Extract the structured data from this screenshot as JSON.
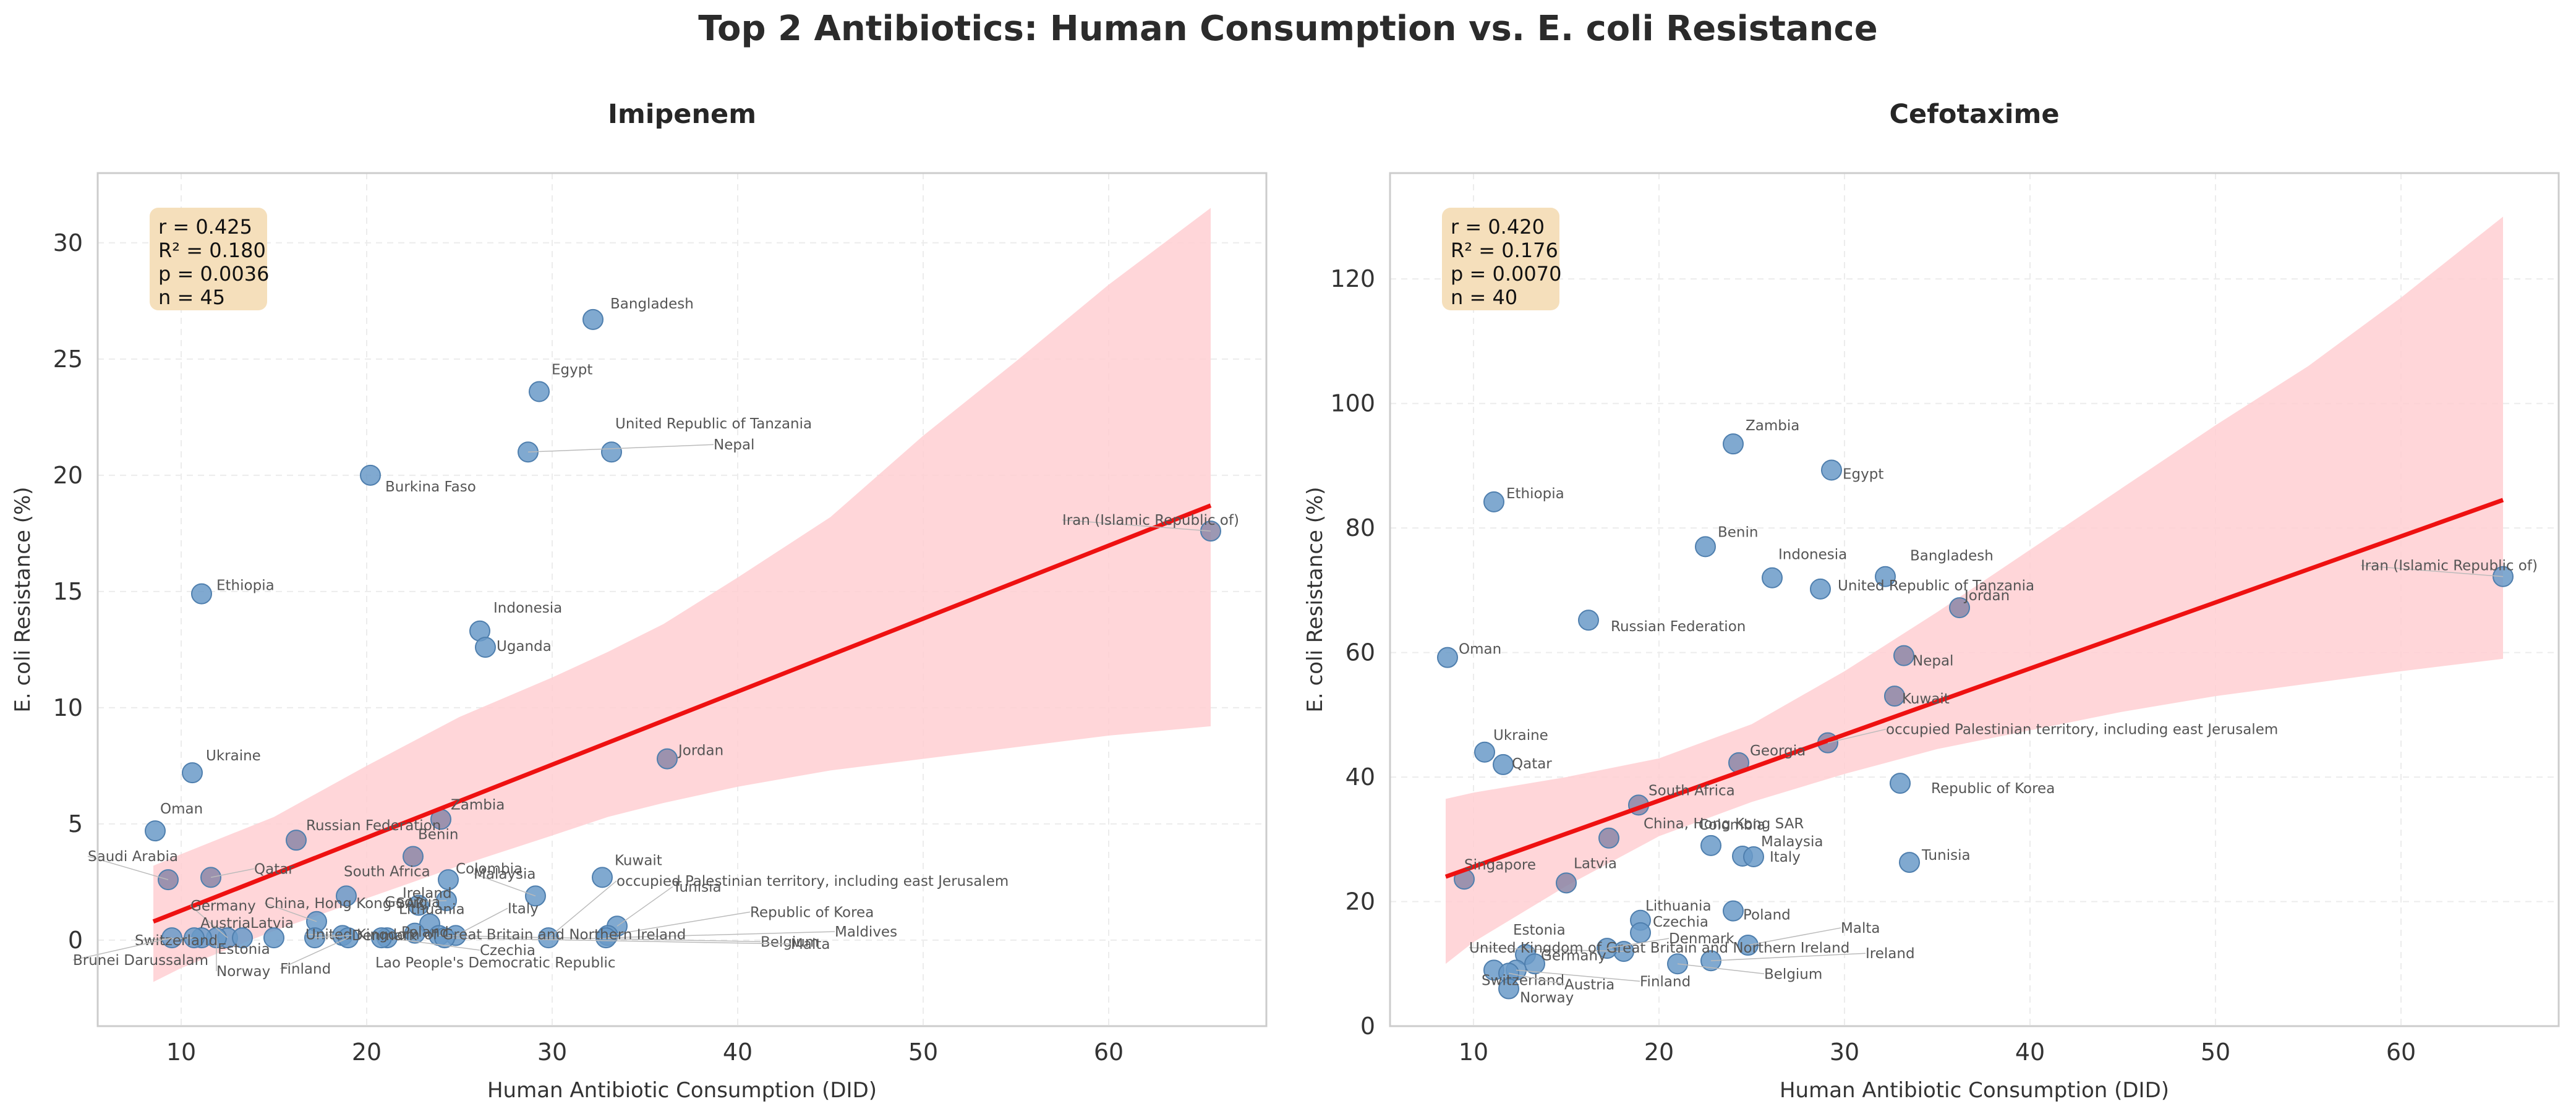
{
  "title": "Top 2 Antibiotics: Human Consumption vs. E. coli Resistance",
  "colors": {
    "point": "#6a9ac8",
    "point_edge": "#4f7fae",
    "overlap_point": "#8b86a6",
    "fit_line": "#ee1111",
    "ci_band": "#ffcfd2",
    "stats_box": "#f5dfbb",
    "grid": "#ececec",
    "axis": "#cccccc"
  },
  "chart_data": [
    {
      "type": "scatter",
      "title": "Imipenem",
      "xlabel": "Human Antibiotic Consumption (DID)",
      "ylabel": "E. coli Resistance (%)",
      "xlim": [
        5.5,
        68.5
      ],
      "ylim": [
        -3.7,
        33
      ],
      "xticks": [
        10,
        20,
        30,
        40,
        50,
        60
      ],
      "yticks": [
        0,
        5,
        10,
        15,
        20,
        25,
        30
      ],
      "grid": true,
      "stats": [
        "r = 0.425",
        "R² = 0.180",
        "p = 0.0036",
        "n = 45"
      ],
      "fit_line": {
        "x": [
          8.5,
          65.5
        ],
        "y": [
          0.8,
          18.7
        ]
      },
      "ci_band": {
        "x": [
          8.5,
          10,
          15,
          20,
          25,
          30,
          33,
          36,
          40,
          45,
          50,
          55,
          60,
          65.5
        ],
        "upper": [
          3.2,
          3.7,
          5.3,
          7.5,
          9.6,
          11.3,
          12.4,
          13.6,
          15.6,
          18.2,
          21.7,
          24.9,
          28.2,
          31.5
        ],
        "lower": [
          -1.8,
          -1.2,
          0.4,
          1.8,
          3.2,
          4.5,
          5.3,
          5.9,
          6.6,
          7.3,
          7.8,
          8.3,
          8.8,
          9.2
        ]
      },
      "points": [
        {
          "label": "Bangladesh",
          "x": 32.2,
          "y": 26.7
        },
        {
          "label": "Egypt",
          "x": 29.3,
          "y": 23.6
        },
        {
          "label": "United Republic of Tanzania",
          "x": 33.2,
          "y": 21.0
        },
        {
          "label": "Nepal",
          "x": 28.7,
          "y": 21.0
        },
        {
          "label": "Burkina Faso",
          "x": 20.2,
          "y": 20.0
        },
        {
          "label": "Iran (Islamic Republic of)",
          "x": 65.5,
          "y": 17.6
        },
        {
          "label": "Ethiopia",
          "x": 11.1,
          "y": 14.9
        },
        {
          "label": "Indonesia",
          "x": 26.1,
          "y": 13.3
        },
        {
          "label": "Uganda",
          "x": 26.4,
          "y": 12.6
        },
        {
          "label": "Jordan",
          "x": 36.2,
          "y": 7.8
        },
        {
          "label": "Ukraine",
          "x": 10.6,
          "y": 7.2
        },
        {
          "label": "Zambia",
          "x": 24.0,
          "y": 5.2
        },
        {
          "label": "Oman",
          "x": 8.6,
          "y": 4.7
        },
        {
          "label": "Russian Federation",
          "x": 16.2,
          "y": 4.3
        },
        {
          "label": "Benin",
          "x": 22.5,
          "y": 3.6
        },
        {
          "label": "Qatar",
          "x": 11.6,
          "y": 2.7
        },
        {
          "label": "Saudi Arabia",
          "x": 9.3,
          "y": 2.6
        },
        {
          "label": "Kuwait",
          "x": 32.7,
          "y": 2.7
        },
        {
          "label": "Malaysia",
          "x": 29.1,
          "y": 1.9
        },
        {
          "label": "Colombia",
          "x": 24.4,
          "y": 2.6
        },
        {
          "label": "South Africa",
          "x": 18.9,
          "y": 1.9
        },
        {
          "label": "Georgia",
          "x": 24.3,
          "y": 1.7
        },
        {
          "label": "Ireland",
          "x": 22.8,
          "y": 1.5
        },
        {
          "label": "occupied Palestinian territory, including east Jerusalem",
          "x": 29.8,
          "y": 0.1
        },
        {
          "label": "China, Hong Kong SAR",
          "x": 17.3,
          "y": 0.8
        },
        {
          "label": "Lithuania",
          "x": 23.4,
          "y": 0.7
        },
        {
          "label": "Italy",
          "x": 24.8,
          "y": 0.2
        },
        {
          "label": "Tunisia",
          "x": 33.5,
          "y": 0.6
        },
        {
          "label": "Republic of Korea",
          "x": 33.0,
          "y": 0.2
        },
        {
          "label": "Maldives",
          "x": 32.9,
          "y": 0.1
        },
        {
          "label": "Belgium",
          "x": 23.9,
          "y": 0.2
        },
        {
          "label": "Malta",
          "x": 24.2,
          "y": 0.1
        },
        {
          "label": "Czechia",
          "x": 21.1,
          "y": 0.1
        },
        {
          "label": "Lao People's Democratic Republic",
          "x": 20.8,
          "y": 0.1
        },
        {
          "label": "Poland",
          "x": 22.6,
          "y": 0.3
        },
        {
          "label": "United Kingdom of Great Britain and Northern Ireland",
          "x": 18.7,
          "y": 0.2
        },
        {
          "label": "Germany",
          "x": 12.5,
          "y": 0.1
        },
        {
          "label": "Latvia",
          "x": 15.0,
          "y": 0.1
        },
        {
          "label": "Estonia",
          "x": 13.3,
          "y": 0.1
        },
        {
          "label": "Finland",
          "x": 19.0,
          "y": 0.1
        },
        {
          "label": "Norway",
          "x": 11.9,
          "y": 0.1
        },
        {
          "label": "Austria",
          "x": 11.1,
          "y": 0.1
        },
        {
          "label": "Switzerland",
          "x": 10.7,
          "y": 0.1
        },
        {
          "label": "Brunei Darussalam",
          "x": 9.5,
          "y": 0.1
        },
        {
          "label": "Denmark",
          "x": 17.2,
          "y": 0.1
        }
      ]
    },
    {
      "type": "scatter",
      "title": "Cefotaxime",
      "xlabel": "Human Antibiotic Consumption (DID)",
      "ylabel": "E. coli Resistance (%)",
      "xlim": [
        5.5,
        68.5
      ],
      "ylim": [
        0,
        137
      ],
      "xticks": [
        10,
        20,
        30,
        40,
        50,
        60
      ],
      "yticks": [
        0,
        20,
        40,
        60,
        80,
        100,
        120
      ],
      "grid": true,
      "stats": [
        "r = 0.420",
        "R² = 0.176",
        "p = 0.0070",
        "n = 40"
      ],
      "fit_line": {
        "x": [
          8.5,
          65.5
        ],
        "y": [
          24.0,
          84.5
        ]
      },
      "ci_band": {
        "x": [
          8.5,
          10,
          15,
          20,
          25,
          30,
          35,
          40,
          45,
          50,
          55,
          60,
          65.5
        ],
        "upper": [
          36.5,
          37.5,
          40.0,
          43.0,
          48.5,
          57.0,
          66.5,
          76.5,
          86.5,
          96.5,
          106.0,
          117.0,
          130.0
        ],
        "lower": [
          10.0,
          13.5,
          22.5,
          30.5,
          36.0,
          40.5,
          44.5,
          47.5,
          50.5,
          53.0,
          55.0,
          57.0,
          59.0
        ]
      },
      "points": [
        {
          "label": "Zambia",
          "x": 24.0,
          "y": 93.5
        },
        {
          "label": "Egypt",
          "x": 29.3,
          "y": 89.3
        },
        {
          "label": "Ethiopia",
          "x": 11.1,
          "y": 84.2
        },
        {
          "label": "Benin",
          "x": 22.5,
          "y": 77.0
        },
        {
          "label": "Indonesia",
          "x": 26.1,
          "y": 72.0
        },
        {
          "label": "Bangladesh",
          "x": 32.2,
          "y": 72.2
        },
        {
          "label": "Iran (Islamic Republic of)",
          "x": 65.5,
          "y": 72.2
        },
        {
          "label": "United Republic of Tanzania",
          "x": 28.7,
          "y": 70.2
        },
        {
          "label": "Jordan",
          "x": 36.2,
          "y": 67.2
        },
        {
          "label": "Russian Federation",
          "x": 16.2,
          "y": 65.2
        },
        {
          "label": "Nepal",
          "x": 33.2,
          "y": 59.5
        },
        {
          "label": "Oman",
          "x": 8.6,
          "y": 59.2
        },
        {
          "label": "Kuwait",
          "x": 32.7,
          "y": 53.0
        },
        {
          "label": "occupied Palestinian territory, including east Jerusalem",
          "x": 29.1,
          "y": 45.5
        },
        {
          "label": "Ukraine",
          "x": 10.6,
          "y": 44.0
        },
        {
          "label": "Georgia",
          "x": 24.3,
          "y": 42.3
        },
        {
          "label": "Qatar",
          "x": 11.6,
          "y": 42.0
        },
        {
          "label": "Republic of Korea",
          "x": 33.0,
          "y": 39.0
        },
        {
          "label": "South Africa",
          "x": 18.9,
          "y": 35.5
        },
        {
          "label": "China, Hong Kong SAR",
          "x": 17.3,
          "y": 30.2
        },
        {
          "label": "Colombia",
          "x": 22.8,
          "y": 29.0
        },
        {
          "label": "Malaysia",
          "x": 24.5,
          "y": 27.3
        },
        {
          "label": "Italy",
          "x": 25.1,
          "y": 27.2
        },
        {
          "label": "Tunisia",
          "x": 33.5,
          "y": 26.3
        },
        {
          "label": "Latvia",
          "x": 15.0,
          "y": 23.0
        },
        {
          "label": "Singapore",
          "x": 9.5,
          "y": 23.6
        },
        {
          "label": "Poland",
          "x": 24.0,
          "y": 18.5
        },
        {
          "label": "Lithuania",
          "x": 19.0,
          "y": 17.0
        },
        {
          "label": "Czechia",
          "x": 19.0,
          "y": 15.0
        },
        {
          "label": "Malta",
          "x": 24.8,
          "y": 13.0
        },
        {
          "label": "Ireland",
          "x": 22.8,
          "y": 10.5
        },
        {
          "label": "United Kingdom of Great Britain and Northern Ireland",
          "x": 18.1,
          "y": 12.0
        },
        {
          "label": "Denmark",
          "x": 17.2,
          "y": 12.5
        },
        {
          "label": "Estonia",
          "x": 12.8,
          "y": 11.5
        },
        {
          "label": "Germany",
          "x": 13.3,
          "y": 10.0
        },
        {
          "label": "Belgium",
          "x": 21.0,
          "y": 10.0
        },
        {
          "label": "Finland",
          "x": 12.3,
          "y": 9.0
        },
        {
          "label": "Switzerland",
          "x": 11.1,
          "y": 9.0
        },
        {
          "label": "Austria",
          "x": 11.9,
          "y": 8.5
        },
        {
          "label": "Norway",
          "x": 11.9,
          "y": 6.0
        }
      ]
    }
  ]
}
